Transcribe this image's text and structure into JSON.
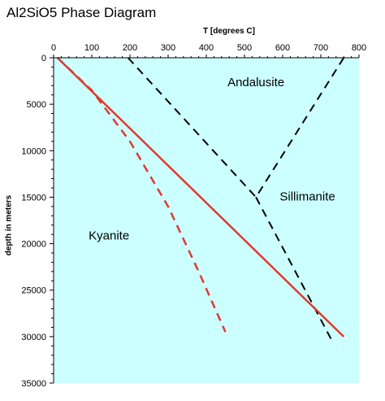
{
  "chart_data": {
    "type": "line",
    "title": "Al2SiO5 Phase Diagram",
    "xlabel": "T [degrees C]",
    "ylabel": "depth in meters",
    "xlim": [
      0,
      800
    ],
    "ylim": [
      0,
      35000
    ],
    "y_inverted": true,
    "x_axis_position": "top",
    "x_ticks": [
      0,
      100,
      200,
      300,
      400,
      500,
      600,
      700,
      800
    ],
    "y_ticks": [
      0,
      5000,
      10000,
      15000,
      20000,
      25000,
      30000,
      35000
    ],
    "background_color": "#ccffff",
    "grid": false,
    "regions": [
      {
        "label": "Andalusite",
        "x": 530,
        "y": 2700
      },
      {
        "label": "Sillimanite",
        "x": 665,
        "y": 15000
      },
      {
        "label": "Kyanite",
        "x": 145,
        "y": 19200
      }
    ],
    "series": [
      {
        "style": "dashed",
        "color": "#000000",
        "points": [
          [
            195,
            0
          ],
          [
            530,
            15000
          ]
        ]
      },
      {
        "style": "dashed",
        "color": "#000000",
        "points": [
          [
            760,
            0
          ],
          [
            530,
            15000
          ]
        ]
      },
      {
        "style": "dashed",
        "color": "#000000",
        "points": [
          [
            530,
            15000
          ],
          [
            730,
            30500
          ]
        ]
      },
      {
        "style": "solid",
        "color": "#e03a2e",
        "points": [
          [
            10,
            0
          ],
          [
            760,
            30000
          ]
        ]
      },
      {
        "style": "dashed",
        "color": "#e03a2e",
        "points": [
          [
            10,
            0
          ],
          [
            100,
            3500
          ],
          [
            200,
            9000
          ],
          [
            300,
            16000
          ],
          [
            380,
            23000
          ],
          [
            450,
            29500
          ]
        ]
      }
    ]
  }
}
